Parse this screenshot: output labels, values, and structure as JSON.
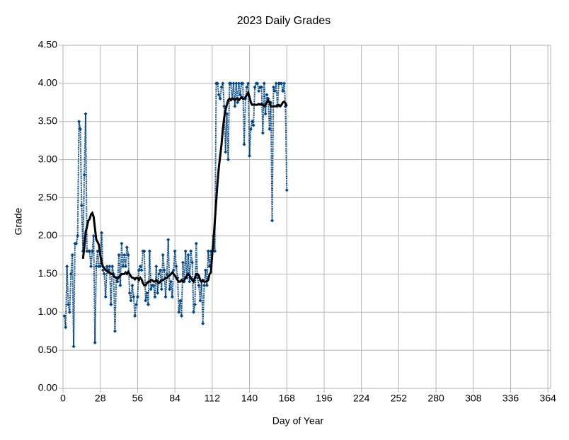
{
  "chart_data": {
    "type": "line",
    "title": "2023 Daily Grades",
    "x_label": "Day of Year",
    "y_label": "Grade",
    "x": [
      1,
      2,
      3,
      4,
      5,
      6,
      7,
      8,
      9,
      10,
      11,
      12,
      13,
      14,
      15,
      16,
      17,
      18,
      19,
      20,
      21,
      22,
      23,
      24,
      25,
      26,
      27,
      28,
      29,
      30,
      31,
      32,
      33,
      34,
      35,
      36,
      37,
      38,
      39,
      40,
      41,
      42,
      43,
      44,
      45,
      46,
      47,
      48,
      49,
      50,
      51,
      52,
      53,
      54,
      55,
      56,
      57,
      58,
      59,
      60,
      61,
      62,
      63,
      64,
      65,
      66,
      67,
      68,
      69,
      70,
      71,
      72,
      73,
      74,
      75,
      76,
      77,
      78,
      79,
      80,
      81,
      82,
      83,
      84,
      85,
      86,
      87,
      88,
      89,
      90,
      91,
      92,
      93,
      94,
      95,
      96,
      97,
      98,
      99,
      100,
      101,
      102,
      103,
      104,
      105,
      106,
      107,
      108,
      109,
      110,
      111,
      112,
      113,
      114,
      115,
      116,
      117,
      118,
      119,
      120,
      121,
      122,
      123,
      124,
      125,
      126,
      127,
      128,
      129,
      130,
      131,
      132,
      133,
      134,
      135,
      136,
      137,
      138,
      139,
      140,
      141,
      142,
      143,
      144,
      145,
      146,
      147,
      148,
      149,
      150,
      151,
      152,
      153,
      154,
      155,
      156,
      157,
      158,
      159,
      160,
      161,
      162,
      163,
      164,
      165,
      166,
      167,
      168
    ],
    "series": [
      {
        "color": "#004586",
        "dotted": true,
        "marker": "diamond",
        "values": [
          0.95,
          0.8,
          1.6,
          1.1,
          1.0,
          1.5,
          1.75,
          0.55,
          1.9,
          1.9,
          2.0,
          3.5,
          3.4,
          2.4,
          1.8,
          2.8,
          3.6,
          1.8,
          1.8,
          1.8,
          1.6,
          1.8,
          2.0,
          0.6,
          1.6,
          1.8,
          1.6,
          1.6,
          2.04,
          1.55,
          1.5,
          1.2,
          1.6,
          1.55,
          1.6,
          1.1,
          1.6,
          1.5,
          0.75,
          1.45,
          1.4,
          1.75,
          1.35,
          1.9,
          1.6,
          1.75,
          1.6,
          1.85,
          1.75,
          1.25,
          1.15,
          1.35,
          1.2,
          0.95,
          1.1,
          1.2,
          1.55,
          1.6,
          1.55,
          1.8,
          1.8,
          1.15,
          1.25,
          1.1,
          1.8,
          1.3,
          1.35,
          1.35,
          1.2,
          1.6,
          1.25,
          1.5,
          1.55,
          1.3,
          1.75,
          1.55,
          1.2,
          1.5,
          1.95,
          1.3,
          1.4,
          1.2,
          1.55,
          1.8,
          1.6,
          1.45,
          1.0,
          1.15,
          0.95,
          1.65,
          1.4,
          1.8,
          1.45,
          1.75,
          1.4,
          1.8,
          1.65,
          1.0,
          1.1,
          1.9,
          1.45,
          1.35,
          1.15,
          1.4,
          0.85,
          1.35,
          1.55,
          1.35,
          1.8,
          1.6,
          1.8,
          1.8,
          2.0,
          1.8,
          4.0,
          4.0,
          3.85,
          3.8,
          3.95,
          4.0,
          3.7,
          3.1,
          3.6,
          3.0,
          4.0,
          4.0,
          3.8,
          4.0,
          3.7,
          4.0,
          3.75,
          4.0,
          3.85,
          4.0,
          4.0,
          3.2,
          3.8,
          3.95,
          4.0,
          3.05,
          3.4,
          3.5,
          3.45,
          3.95,
          4.0,
          4.0,
          3.9,
          3.95,
          3.95,
          3.35,
          4.0,
          3.6,
          3.85,
          3.8,
          3.4,
          3.75,
          2.2,
          3.95,
          3.9,
          4.0,
          3.7,
          4.0,
          4.0,
          4.0,
          3.9,
          4.0,
          3.7,
          2.6
        ]
      },
      {
        "color": "#000000",
        "dotted": false,
        "marker": "none",
        "values": [
          null,
          null,
          null,
          null,
          null,
          null,
          null,
          null,
          null,
          null,
          null,
          null,
          null,
          null,
          1.7,
          1.85,
          2.05,
          2.12,
          2.2,
          2.22,
          2.28,
          2.3,
          2.25,
          2.1,
          1.95,
          1.92,
          1.88,
          1.75,
          1.65,
          1.6,
          1.58,
          1.55,
          1.55,
          1.52,
          1.52,
          1.5,
          1.5,
          1.48,
          1.46,
          1.45,
          1.44,
          1.46,
          1.48,
          1.5,
          1.5,
          1.5,
          1.52,
          1.5,
          1.53,
          1.5,
          1.47,
          1.45,
          1.45,
          1.43,
          1.45,
          1.45,
          1.42,
          1.45,
          1.43,
          1.38,
          1.35,
          1.35,
          1.38,
          1.4,
          1.4,
          1.42,
          1.42,
          1.4,
          1.4,
          1.42,
          1.4,
          1.38,
          1.4,
          1.42,
          1.42,
          1.43,
          1.45,
          1.45,
          1.47,
          1.48,
          1.5,
          1.52,
          1.5,
          1.48,
          1.45,
          1.42,
          1.4,
          1.4,
          1.42,
          1.4,
          1.42,
          1.45,
          1.48,
          1.5,
          1.48,
          1.45,
          1.42,
          1.4,
          1.45,
          1.5,
          1.5,
          1.48,
          1.42,
          1.4,
          1.42,
          1.4,
          1.4,
          1.4,
          1.42,
          1.5,
          1.52,
          1.75,
          1.95,
          2.2,
          2.45,
          2.7,
          2.9,
          3.05,
          3.2,
          3.4,
          3.55,
          3.65,
          3.72,
          3.78,
          3.8,
          3.78,
          3.8,
          3.8,
          3.78,
          3.8,
          3.8,
          3.78,
          3.8,
          3.82,
          3.8,
          3.8,
          3.82,
          3.85,
          3.88,
          3.82,
          3.75,
          3.72,
          3.72,
          3.72,
          3.72,
          3.72,
          3.73,
          3.72,
          3.73,
          3.72,
          3.7,
          3.72,
          3.75,
          3.78,
          3.75,
          3.7,
          3.7,
          3.7,
          3.7,
          3.7,
          3.72,
          3.72,
          3.7,
          3.72,
          3.75,
          3.76,
          3.74,
          3.7
        ]
      }
    ],
    "xlim": [
      0,
      366
    ],
    "xticks": [
      0,
      28,
      56,
      84,
      112,
      140,
      168,
      196,
      224,
      252,
      280,
      308,
      336,
      364
    ],
    "ylim": [
      0,
      4.5
    ],
    "yticks": [
      {
        "value": 0,
        "label": "0.00"
      },
      {
        "value": 0.5,
        "label": "0.50"
      },
      {
        "value": 1,
        "label": "1.00"
      },
      {
        "value": 1.5,
        "label": "1.50"
      },
      {
        "value": 2,
        "label": "2.00"
      },
      {
        "value": 2.5,
        "label": "2.50"
      },
      {
        "value": 3,
        "label": "3.00"
      },
      {
        "value": 3.5,
        "label": "3.50"
      },
      {
        "value": 4,
        "label": "4.00"
      },
      {
        "value": 4.5,
        "label": "4.50"
      }
    ],
    "grid": true
  }
}
